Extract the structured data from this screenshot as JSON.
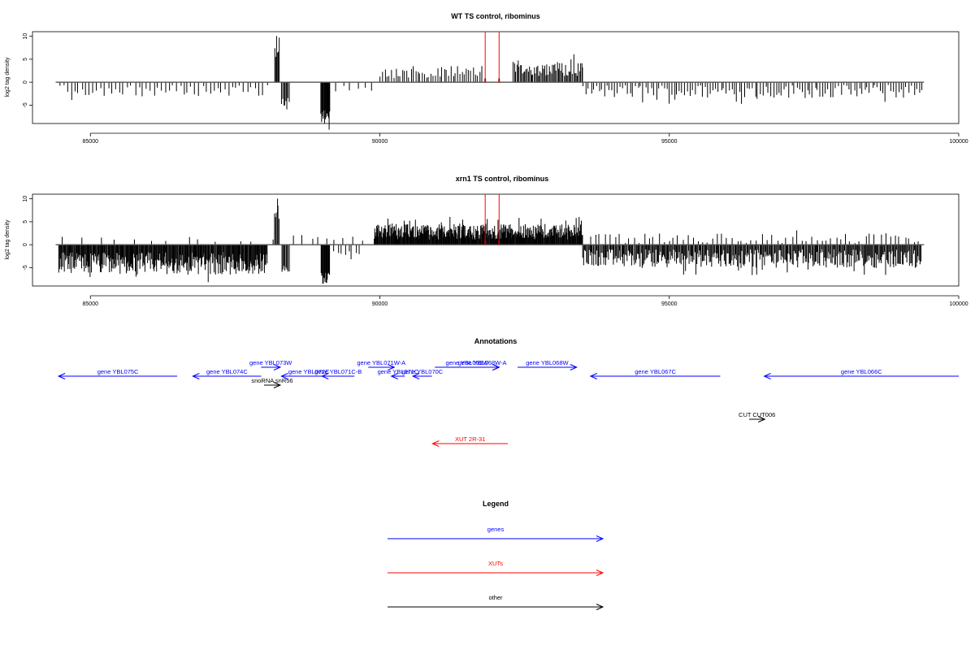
{
  "chart_data": [
    {
      "type": "bar",
      "title": "WT TS control, ribominus",
      "ylabel": "log2 tag density",
      "xlim": [
        84000,
        100000
      ],
      "ylim": [
        -9,
        11
      ],
      "yticks": [
        -5,
        0,
        5,
        10
      ],
      "xticks": [
        85000,
        90000,
        95000,
        100000
      ],
      "highlights": [
        91820,
        92060
      ],
      "series": [
        {
          "strand": "plus",
          "segments": [
            {
              "start": 88180,
              "end": 88260,
              "amp": 11.0,
              "step": 15,
              "jitter": 0.5
            },
            {
              "start": 90000,
              "end": 91750,
              "amp": 3.5,
              "step": 38,
              "jitter": 0.75
            },
            {
              "start": 92300,
              "end": 93500,
              "amp": 4.5,
              "step": 20,
              "jitter": 0.7
            }
          ]
        },
        {
          "strand": "minus",
          "segments": [
            {
              "start": 84450,
              "end": 88050,
              "amp": 3.0,
              "step": 65,
              "jitter": 0.8
            },
            {
              "start": 88300,
              "end": 88440,
              "amp": 6.0,
              "step": 18,
              "jitter": 0.5
            },
            {
              "start": 88980,
              "end": 89130,
              "amp": 8.5,
              "step": 10,
              "jitter": 0.3
            },
            {
              "start": 89200,
              "end": 89900,
              "amp": 2.0,
              "step": 120,
              "jitter": 0.6
            },
            {
              "start": 93500,
              "end": 99350,
              "amp": 3.5,
              "step": 45,
              "jitter": 0.85
            }
          ]
        }
      ]
    },
    {
      "type": "bar",
      "title": "xrn1 TS control, ribominus",
      "ylabel": "log2 tag density",
      "xlim": [
        84000,
        100000
      ],
      "ylim": [
        -9,
        11
      ],
      "yticks": [
        -5,
        0,
        5,
        10
      ],
      "xticks": [
        85000,
        90000,
        95000,
        100000
      ],
      "highlights": [
        91820,
        92060
      ],
      "series": [
        {
          "strand": "plus",
          "segments": [
            {
              "start": 84450,
              "end": 88050,
              "amp": 1.8,
              "step": 300,
              "jitter": 0.7
            },
            {
              "start": 88180,
              "end": 88260,
              "amp": 10.5,
              "step": 15,
              "jitter": 0.5
            },
            {
              "start": 88500,
              "end": 89650,
              "amp": 2.0,
              "step": 140,
              "jitter": 0.6
            },
            {
              "start": 89900,
              "end": 93500,
              "amp": 4.5,
              "step": 10,
              "jitter": 0.75
            },
            {
              "start": 93600,
              "end": 99300,
              "amp": 2.5,
              "step": 85,
              "jitter": 0.9
            }
          ]
        },
        {
          "strand": "minus",
          "segments": [
            {
              "start": 84450,
              "end": 88050,
              "amp": 6.5,
              "step": 12,
              "jitter": 0.75
            },
            {
              "start": 88300,
              "end": 88440,
              "amp": 6.0,
              "step": 18,
              "jitter": 0.5
            },
            {
              "start": 88980,
              "end": 89130,
              "amp": 8.5,
              "step": 10,
              "jitter": 0.3
            },
            {
              "start": 89200,
              "end": 89650,
              "amp": 2.5,
              "step": 60,
              "jitter": 0.6
            },
            {
              "start": 93500,
              "end": 99350,
              "amp": 5.0,
              "step": 16,
              "jitter": 0.8
            }
          ]
        }
      ]
    }
  ],
  "annotations": {
    "title": "Annotations",
    "xlim": [
      84000,
      100000
    ],
    "colors": {
      "gene": "#0000ff",
      "xut": "#ff0000",
      "other": "#000000"
    },
    "features": [
      {
        "label": "gene YBL075C",
        "category": "gene",
        "start": 84450,
        "end": 86500,
        "strand": "-",
        "row": 2
      },
      {
        "label": "gene YBL074C",
        "category": "gene",
        "start": 86770,
        "end": 87950,
        "strand": "-",
        "row": 2
      },
      {
        "label": "gene YBL073W",
        "category": "gene",
        "start": 87950,
        "end": 88280,
        "strand": "+",
        "row": 1
      },
      {
        "label": "snoRNA snR56",
        "category": "other",
        "start": 88000,
        "end": 88280,
        "strand": "+",
        "row": 3
      },
      {
        "label": "gene YBL072C",
        "category": "gene",
        "start": 88300,
        "end": 89250,
        "strand": "-",
        "row": 2
      },
      {
        "label": "gene YBL071C-B",
        "category": "gene",
        "start": 89000,
        "end": 89560,
        "strand": "-",
        "row": 2
      },
      {
        "label": "gene YBL071W-A",
        "category": "gene",
        "start": 89800,
        "end": 90250,
        "strand": "+",
        "row": 1
      },
      {
        "label": "gene YBL071C",
        "category": "gene",
        "start": 90200,
        "end": 90430,
        "strand": "-",
        "row": 2
      },
      {
        "label": "gene YBL070C",
        "category": "gene",
        "start": 90570,
        "end": 90900,
        "strand": "-",
        "row": 2
      },
      {
        "label": "gene YBL069W",
        "category": "gene",
        "start": 90950,
        "end": 92060,
        "strand": "+",
        "row": 1
      },
      {
        "label": "gene YBL068W-A",
        "category": "gene",
        "start": 91480,
        "end": 92060,
        "strand": "+",
        "row": 1
      },
      {
        "label": "gene YBL068W",
        "category": "gene",
        "start": 92380,
        "end": 93400,
        "strand": "+",
        "row": 1
      },
      {
        "label": "gene YBL067C",
        "category": "gene",
        "start": 93640,
        "end": 95880,
        "strand": "-",
        "row": 2
      },
      {
        "label": "gene YBL066C",
        "category": "gene",
        "start": 96640,
        "end": 100000,
        "strand": "-",
        "row": 2
      },
      {
        "label": "CUT CUT006",
        "category": "other",
        "start": 96380,
        "end": 96650,
        "strand": "+",
        "row": 4
      },
      {
        "label": "XUT 2R-31",
        "category": "xut",
        "start": 90910,
        "end": 92210,
        "strand": "-",
        "row": 5
      }
    ]
  },
  "legend": {
    "title": "Legend",
    "items": [
      {
        "label": "genes",
        "color": "#0000ff"
      },
      {
        "label": "XUTs",
        "color": "#ff0000"
      },
      {
        "label": "other",
        "color": "#000000"
      }
    ]
  }
}
